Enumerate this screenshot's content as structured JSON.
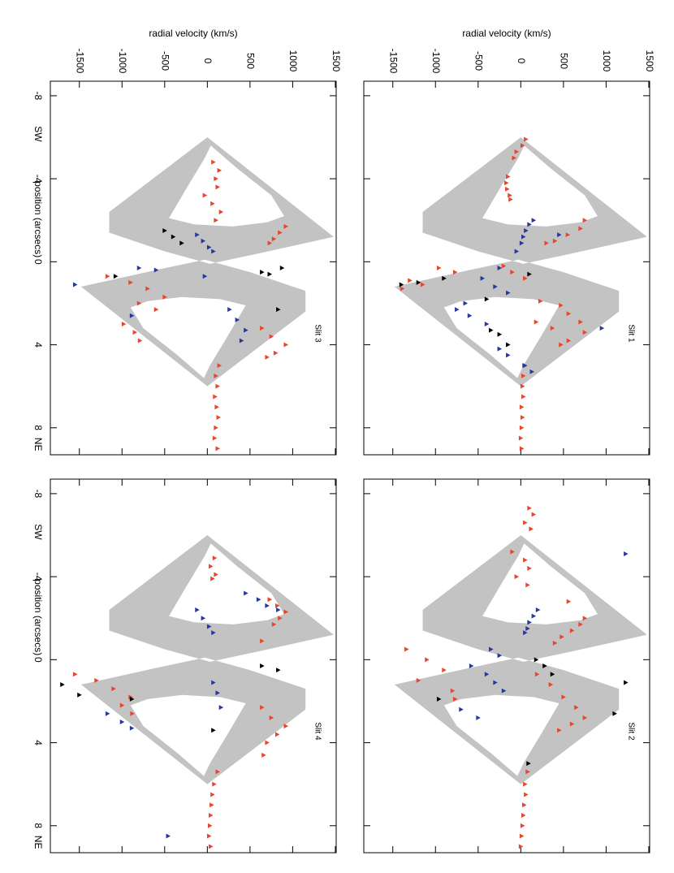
{
  "chart_data": [
    {
      "type": "scatter",
      "label": "Slit 1",
      "ylabel": "radial velocity (km/s)",
      "xlim": [
        -8.7,
        9.3
      ],
      "ylim": [
        -1840,
        1510
      ],
      "xticks": [
        -8,
        -4,
        0,
        4,
        8
      ],
      "yticks": [
        -1500,
        -1000,
        -500,
        0,
        500,
        1000,
        1500
      ],
      "model": {
        "color": "#c3c3c3",
        "regions": [
          {
            "x": [
              -6.0,
              -1.2,
              -0.4,
              0.1,
              -0.5,
              -1.4,
              -2.4
            ],
            "values": [
              0,
              1480,
              600,
              30,
              -500,
              -1150,
              -1150
            ]
          },
          {
            "x": [
              -5.6,
              -4.5,
              -3.2,
              -2.2,
              -1.9,
              -1.7,
              -1.8,
              -2.1,
              -3.5,
              -5.0
            ],
            "values": [
              40,
              350,
              750,
              900,
              700,
              300,
              -150,
              -450,
              -250,
              -30
            ]
          },
          {
            "x": [
              6.0,
              1.2,
              0.4,
              -0.1,
              0.5,
              1.4,
              2.4
            ],
            "values": [
              0,
              -1480,
              -600,
              -30,
              500,
              1150,
              1150
            ]
          },
          {
            "x": [
              5.6,
              4.5,
              3.2,
              2.2,
              1.9,
              1.7,
              1.8,
              2.1,
              3.5,
              5.0
            ],
            "values": [
              -40,
              -350,
              -750,
              -900,
              -700,
              -300,
              150,
              450,
              250,
              30
            ]
          }
        ]
      },
      "series": [
        {
          "color": "#e8452c",
          "x": [
            -5.9,
            -5.6,
            -5.3,
            -5.0,
            -4.1,
            -3.8,
            -3.5,
            -3.2,
            -3.0,
            -2.0,
            -1.6,
            -1.3,
            -1.0,
            -0.9,
            0.2,
            0.5,
            0.8,
            0.5,
            0.3,
            1.1,
            0.9,
            1.3,
            1.9,
            2.1,
            2.5,
            2.9,
            3.4,
            3.8,
            4.0,
            2.9,
            3.2,
            5.0,
            5.5,
            6.0,
            6.5,
            7.0,
            7.5,
            8.0,
            8.5,
            9.0
          ],
          "values": [
            60,
            20,
            -50,
            -80,
            -150,
            -170,
            -160,
            -130,
            -120,
            750,
            700,
            550,
            400,
            300,
            -200,
            -100,
            50,
            -770,
            -960,
            -1150,
            -1300,
            -1390,
            230,
            470,
            560,
            700,
            750,
            560,
            470,
            180,
            370,
            40,
            30,
            20,
            30,
            10,
            20,
            10,
            0,
            10
          ]
        },
        {
          "color": "#27389a",
          "x": [
            -2.0,
            -1.8,
            -1.5,
            -1.2,
            -0.9,
            -0.5,
            0.3,
            0.8,
            1.2,
            1.5,
            2.0,
            2.3,
            2.6,
            3.0,
            -1.3,
            3.2,
            4.2,
            4.5,
            5.0,
            5.3
          ],
          "values": [
            150,
            100,
            60,
            30,
            10,
            -50,
            -250,
            -450,
            -300,
            -150,
            -650,
            -750,
            -600,
            -400,
            450,
            950,
            -250,
            -150,
            50,
            130
          ]
        },
        {
          "color": "#000000",
          "x": [
            1.1,
            1.0,
            0.8,
            3.3,
            3.5,
            4.0,
            0.6,
            1.8
          ],
          "values": [
            -1400,
            -1200,
            -900,
            -350,
            -250,
            -150,
            100,
            -400
          ]
        }
      ]
    },
    {
      "type": "scatter",
      "label": "Slit 2",
      "xlim": [
        -8.7,
        9.3
      ],
      "ylim": [
        -1840,
        1510
      ],
      "xticks": [
        -8,
        -4,
        0,
        4,
        8
      ],
      "yticks": [
        -1500,
        -1000,
        -500,
        0,
        500,
        1000,
        1500
      ],
      "model": {
        "color": "#c3c3c3",
        "regions": [
          {
            "x": [
              -6.0,
              -1.2,
              -0.4,
              0.1,
              -0.5,
              -1.4,
              -2.4
            ],
            "values": [
              0,
              1480,
              600,
              30,
              -500,
              -1150,
              -1150
            ]
          },
          {
            "x": [
              -5.6,
              -4.5,
              -3.2,
              -2.2,
              -1.9,
              -1.7,
              -1.8,
              -2.1,
              -3.5,
              -5.0
            ],
            "values": [
              40,
              350,
              750,
              900,
              700,
              300,
              -150,
              -450,
              -250,
              -30
            ]
          },
          {
            "x": [
              6.0,
              1.2,
              0.4,
              -0.1,
              0.5,
              1.4,
              2.4
            ],
            "values": [
              0,
              -1480,
              -600,
              -30,
              500,
              1150,
              1150
            ]
          },
          {
            "x": [
              5.6,
              4.5,
              3.2,
              2.2,
              1.9,
              1.7,
              1.8,
              2.1,
              3.5,
              5.0
            ],
            "values": [
              -40,
              -350,
              -750,
              -900,
              -700,
              -300,
              150,
              450,
              250,
              30
            ]
          }
        ]
      },
      "series": [
        {
          "color": "#e8452c",
          "x": [
            -7.3,
            -7.0,
            -6.6,
            -6.3,
            -5.2,
            -4.8,
            -4.4,
            -4.0,
            -3.6,
            -2.8,
            -2.0,
            -1.7,
            -1.4,
            -1.1,
            -0.8,
            -0.5,
            0.0,
            0.5,
            1.0,
            1.5,
            1.9,
            0.7,
            1.2,
            1.8,
            2.3,
            2.8,
            3.1,
            3.4,
            5.4,
            6.0,
            6.5,
            7.0,
            7.5,
            8.0,
            8.5,
            9.0
          ],
          "values": [
            100,
            150,
            50,
            120,
            -100,
            50,
            100,
            -50,
            80,
            560,
            750,
            700,
            600,
            480,
            400,
            -1340,
            -1100,
            -900,
            -1200,
            -800,
            -770,
            190,
            350,
            500,
            650,
            750,
            600,
            450,
            80,
            50,
            60,
            40,
            30,
            20,
            10,
            0
          ]
        },
        {
          "color": "#27389a",
          "x": [
            -2.4,
            -2.1,
            -1.8,
            -1.5,
            -1.3,
            0.3,
            0.7,
            1.1,
            1.5,
            -0.5,
            -0.2,
            -5.1,
            2.4,
            2.8
          ],
          "values": [
            200,
            150,
            100,
            80,
            50,
            -580,
            -400,
            -300,
            -200,
            -350,
            -250,
            1230,
            -700,
            -500
          ]
        },
        {
          "color": "#000000",
          "x": [
            0.0,
            0.3,
            0.7,
            1.9,
            1.1,
            5.0,
            2.6
          ],
          "values": [
            180,
            280,
            370,
            -960,
            1230,
            90,
            1100
          ]
        }
      ]
    },
    {
      "type": "scatter",
      "label": "Slit 3",
      "ylabel": "radial velocity (km/s)",
      "xlabel": "position (arcsecs)",
      "annotations": [
        "SW",
        "NE"
      ],
      "xlim": [
        -8.7,
        9.3
      ],
      "ylim": [
        -1840,
        1510
      ],
      "xticks": [
        -8,
        -4,
        0,
        4,
        8
      ],
      "yticks": [
        -1500,
        -1000,
        -500,
        0,
        500,
        1000,
        1500
      ],
      "model": {
        "color": "#c3c3c3",
        "regions": [
          {
            "x": [
              -6.0,
              -1.2,
              -0.4,
              0.1,
              -0.5,
              -1.4,
              -2.4
            ],
            "values": [
              0,
              1480,
              600,
              30,
              -500,
              -1150,
              -1150
            ]
          },
          {
            "x": [
              -5.6,
              -4.5,
              -3.2,
              -2.2,
              -1.9,
              -1.7,
              -1.8,
              -2.1,
              -3.5,
              -5.0
            ],
            "values": [
              40,
              350,
              750,
              900,
              700,
              300,
              -150,
              -450,
              -250,
              -30
            ]
          },
          {
            "x": [
              6.0,
              1.2,
              0.4,
              -0.1,
              0.5,
              1.4,
              2.4
            ],
            "values": [
              0,
              -1480,
              -600,
              -30,
              500,
              1150,
              1150
            ]
          },
          {
            "x": [
              5.6,
              4.5,
              3.2,
              2.2,
              1.9,
              1.7,
              1.8,
              2.1,
              3.5,
              5.0
            ],
            "values": [
              -40,
              -350,
              -750,
              -900,
              -700,
              -300,
              150,
              450,
              250,
              30
            ]
          }
        ]
      },
      "series": [
        {
          "color": "#e8452c",
          "x": [
            -4.8,
            -4.4,
            -4.0,
            -3.6,
            -3.2,
            -2.8,
            -2.4,
            -2.0,
            -1.7,
            -1.4,
            -1.1,
            -0.9,
            0.7,
            1.0,
            1.3,
            1.7,
            2.0,
            2.3,
            3.0,
            3.4,
            3.8,
            3.2,
            3.6,
            4.0,
            4.4,
            4.6,
            5.0,
            5.5,
            6.0,
            6.5,
            7.0,
            7.5,
            8.0,
            8.5,
            9.0
          ],
          "values": [
            70,
            140,
            100,
            120,
            -30,
            60,
            160,
            100,
            920,
            850,
            780,
            730,
            -1170,
            -900,
            -700,
            -500,
            -800,
            -600,
            -980,
            -850,
            -790,
            640,
            750,
            920,
            800,
            700,
            140,
            100,
            120,
            90,
            110,
            130,
            100,
            85,
            120
          ]
        },
        {
          "color": "#27389a",
          "x": [
            -1.3,
            -1.0,
            -0.7,
            -0.5,
            0.3,
            0.4,
            1.1,
            0.7,
            2.3,
            2.8,
            3.3,
            3.8,
            2.6
          ],
          "values": [
            -120,
            -50,
            20,
            70,
            -800,
            -600,
            -1550,
            -30,
            260,
            350,
            450,
            400,
            -885
          ]
        },
        {
          "color": "#000000",
          "x": [
            -1.5,
            -1.2,
            -0.9,
            0.5,
            0.6,
            0.3,
            0.7,
            2.3
          ],
          "values": [
            -500,
            -400,
            -300,
            640,
            730,
            875,
            -1075,
            830
          ]
        }
      ]
    },
    {
      "type": "scatter",
      "label": "Slit 4",
      "xlabel": "position (arcsecs)",
      "annotations": [
        "SW",
        "NE"
      ],
      "xlim": [
        -8.7,
        9.3
      ],
      "ylim": [
        -1840,
        1510
      ],
      "xticks": [
        -8,
        -4,
        0,
        4,
        8
      ],
      "yticks": [
        -1500,
        -1000,
        -500,
        0,
        500,
        1000,
        1500
      ],
      "model": {
        "color": "#c3c3c3",
        "regions": [
          {
            "x": [
              -6.0,
              -1.2,
              -0.4,
              0.1,
              -0.5,
              -1.4,
              -2.4
            ],
            "values": [
              0,
              1480,
              600,
              30,
              -500,
              -1150,
              -1150
            ]
          },
          {
            "x": [
              -5.6,
              -4.5,
              -3.2,
              -2.2,
              -1.9,
              -1.7,
              -1.8,
              -2.1,
              -3.5,
              -5.0
            ],
            "values": [
              40,
              350,
              750,
              900,
              700,
              300,
              -150,
              -450,
              -250,
              -30
            ]
          },
          {
            "x": [
              6.0,
              1.2,
              0.4,
              -0.1,
              0.5,
              1.4,
              2.4
            ],
            "values": [
              0,
              -1480,
              -600,
              -30,
              500,
              1150,
              1150
            ]
          },
          {
            "x": [
              5.6,
              4.5,
              3.2,
              2.2,
              1.9,
              1.7,
              1.8,
              2.1,
              3.5,
              5.0
            ],
            "values": [
              -40,
              -350,
              -750,
              -900,
              -700,
              -300,
              150,
              450,
              250,
              30
            ]
          }
        ]
      },
      "series": [
        {
          "color": "#e8452c",
          "x": [
            -4.9,
            -4.5,
            -4.1,
            -3.9,
            -2.9,
            -2.6,
            -2.3,
            -2.0,
            -1.7,
            -0.9,
            0.7,
            1.0,
            1.4,
            1.8,
            2.2,
            2.6,
            2.3,
            2.8,
            3.2,
            3.6,
            4.0,
            4.6,
            5.4,
            6.0,
            6.5,
            7.0,
            7.5,
            8.0,
            8.5,
            9.0
          ],
          "values": [
            85,
            40,
            100,
            60,
            730,
            820,
            920,
            850,
            780,
            640,
            -1550,
            -1300,
            -1100,
            -900,
            -1000,
            -880,
            640,
            750,
            920,
            820,
            700,
            660,
            120,
            80,
            60,
            50,
            40,
            30,
            20,
            40
          ]
        },
        {
          "color": "#27389a",
          "x": [
            -2.4,
            -2.0,
            -1.6,
            -1.3,
            -3.2,
            -2.9,
            -2.6,
            -2.4,
            2.6,
            3.0,
            3.3,
            8.5,
            1.1,
            1.6,
            2.3
          ],
          "values": [
            -120,
            -50,
            20,
            70,
            450,
            600,
            700,
            830,
            -1170,
            -1000,
            -885,
            -460,
            70,
            120,
            160
          ]
        },
        {
          "color": "#000000",
          "x": [
            1.7,
            1.9,
            0.3,
            0.5,
            3.4,
            1.2
          ],
          "values": [
            -1500,
            -885,
            640,
            830,
            70,
            -1700
          ]
        }
      ]
    }
  ]
}
